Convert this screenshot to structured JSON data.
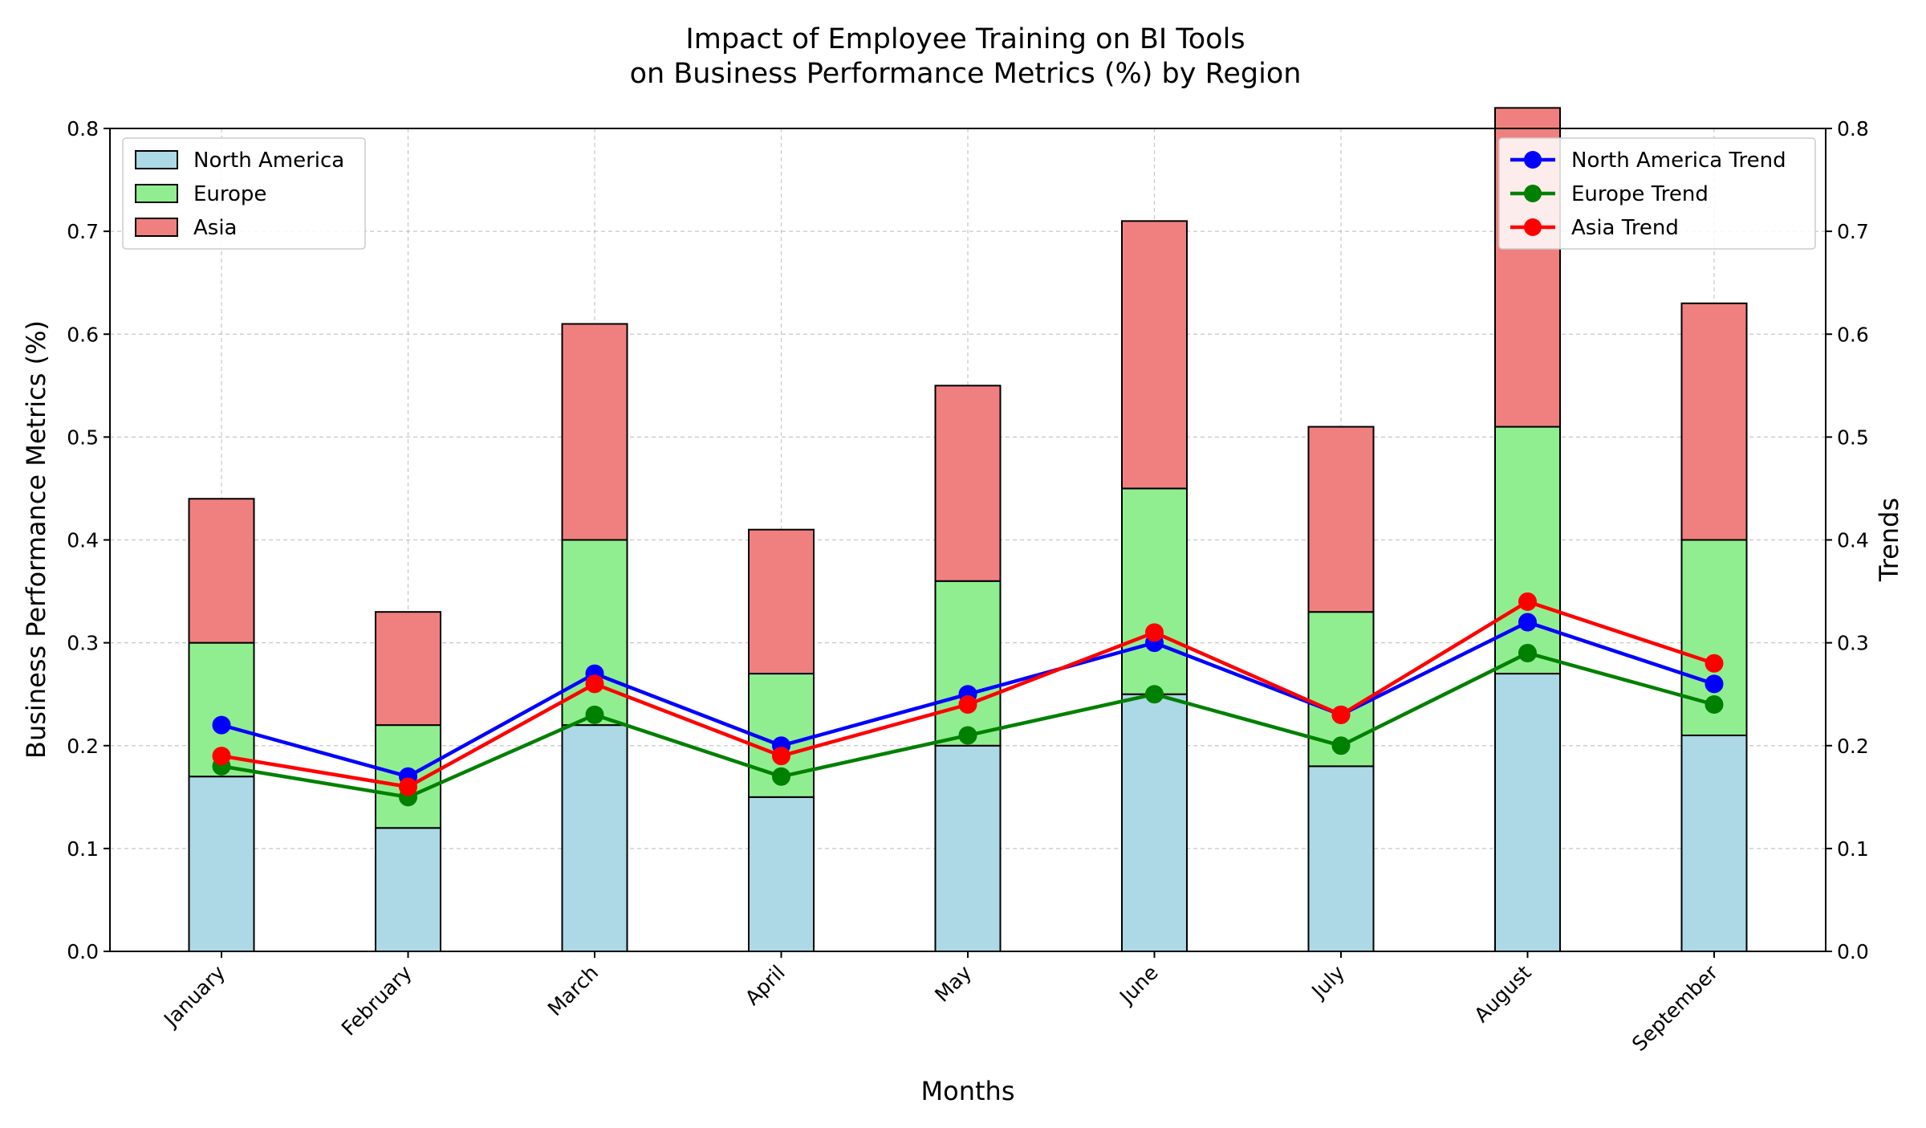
{
  "chart_data": {
    "type": "bar",
    "stacked": true,
    "title_line1": "Impact of Employee Training on BI Tools",
    "title_line2": "on Business Performance Metrics (%) by Region",
    "xlabel": "Months",
    "ylabel": "Business Performance Metrics (%)",
    "ylabel_right": "Trends",
    "ylim": [
      0,
      0.8
    ],
    "yticks": [
      "0.0",
      "0.1",
      "0.2",
      "0.3",
      "0.4",
      "0.5",
      "0.6",
      "0.7",
      "0.8"
    ],
    "grid": true,
    "categories": [
      "January",
      "February",
      "March",
      "April",
      "May",
      "June",
      "July",
      "August",
      "September"
    ],
    "series": [
      {
        "name": "North America",
        "color": "#add8e6",
        "values": [
          0.17,
          0.12,
          0.22,
          0.15,
          0.2,
          0.25,
          0.18,
          0.27,
          0.21
        ]
      },
      {
        "name": "Europe",
        "color": "#90ee90",
        "values": [
          0.13,
          0.1,
          0.18,
          0.12,
          0.16,
          0.2,
          0.15,
          0.24,
          0.19
        ]
      },
      {
        "name": "Asia",
        "color": "#f08080",
        "values": [
          0.14,
          0.11,
          0.21,
          0.14,
          0.19,
          0.26,
          0.18,
          0.31,
          0.23
        ]
      }
    ],
    "trend_series": [
      {
        "name": "North America Trend",
        "color": "#0000ff",
        "values": [
          0.22,
          0.17,
          0.27,
          0.2,
          0.25,
          0.3,
          0.23,
          0.32,
          0.26
        ]
      },
      {
        "name": "Europe Trend",
        "color": "#008000",
        "values": [
          0.18,
          0.15,
          0.23,
          0.17,
          0.21,
          0.25,
          0.2,
          0.29,
          0.24
        ]
      },
      {
        "name": "Asia Trend",
        "color": "#ff0000",
        "values": [
          0.19,
          0.16,
          0.26,
          0.19,
          0.24,
          0.31,
          0.23,
          0.34,
          0.28
        ]
      }
    ],
    "legend_left_position": "top-left",
    "legend_right_position": "top-right"
  }
}
